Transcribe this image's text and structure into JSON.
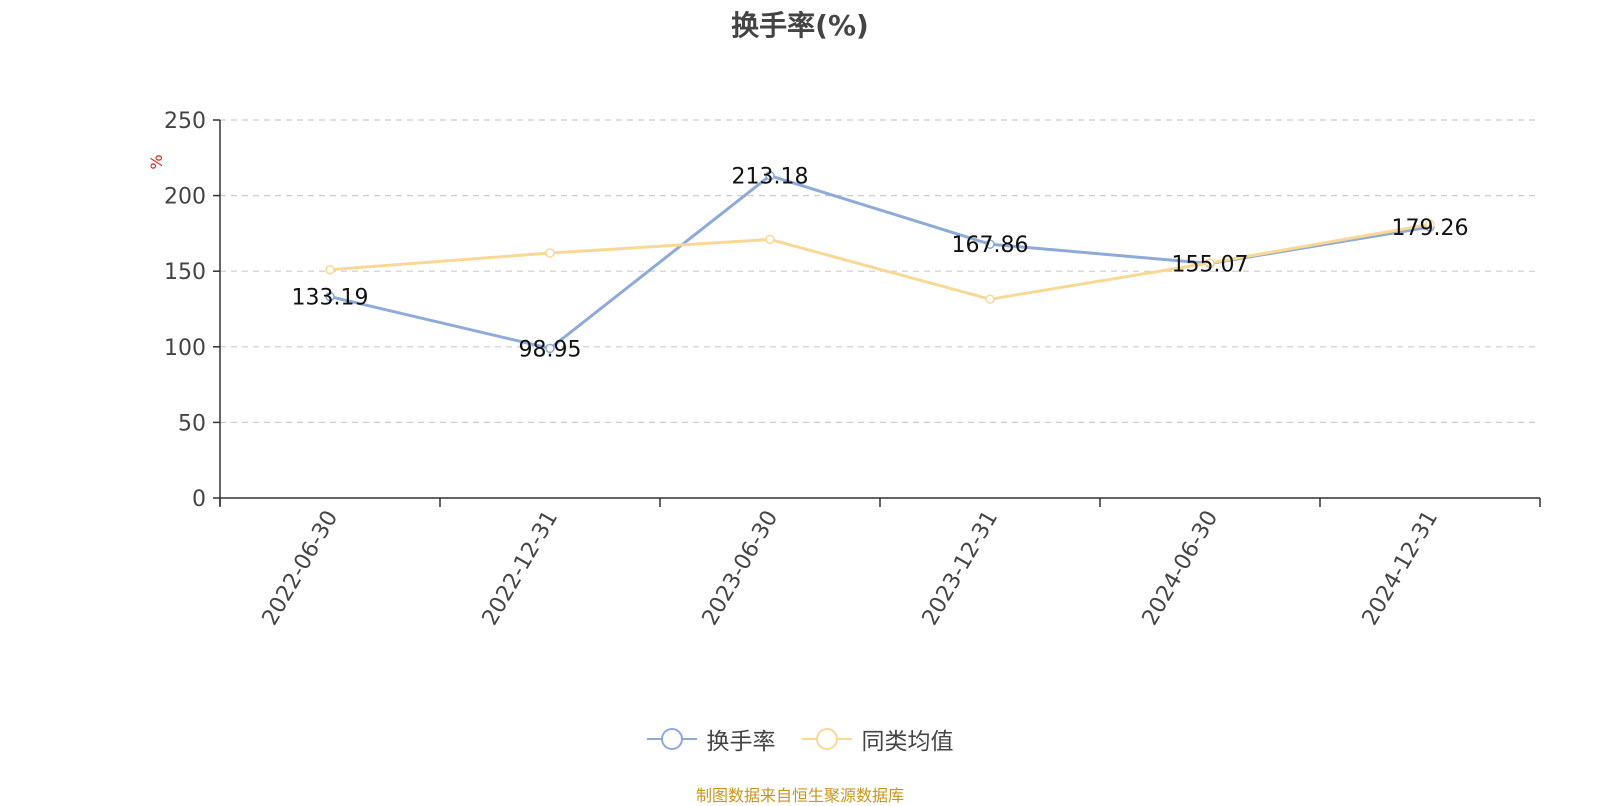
{
  "chart_data": {
    "type": "line",
    "title": "换手率(%)",
    "ylabel": "%",
    "xlabel": "",
    "categories": [
      "2022-06-30",
      "2022-12-31",
      "2023-06-30",
      "2023-12-31",
      "2024-06-30",
      "2024-12-31"
    ],
    "ylim": [
      0,
      250
    ],
    "yticks": [
      0,
      50,
      100,
      150,
      200,
      250
    ],
    "grid": true,
    "legend_position": "bottom-center",
    "series": [
      {
        "name": "换手率",
        "values": [
          133.19,
          98.95,
          213.18,
          167.86,
          155.07,
          179.26
        ],
        "labels_shown": true,
        "color": "#8eaad8"
      },
      {
        "name": "同类均值",
        "values": [
          151.0,
          162.0,
          171.0,
          131.5,
          155.5,
          181.0
        ],
        "labels_shown": false,
        "color": "#f9d895"
      }
    ],
    "source_note": "制图数据来自恒生聚源数据库"
  }
}
